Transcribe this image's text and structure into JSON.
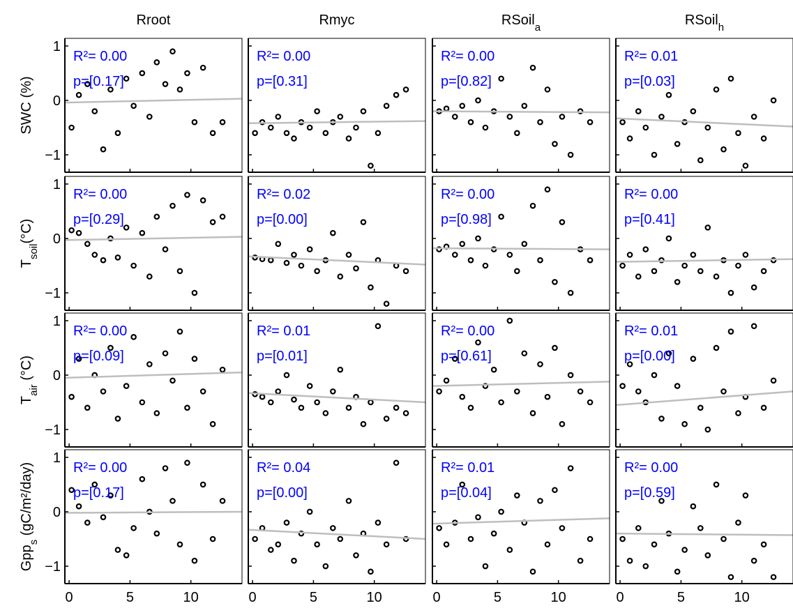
{
  "marker_color": "#000000",
  "fit_color": "#bebebe",
  "stats_color": "#0000ff",
  "chart_data": [
    {
      "type": "scatter",
      "title": {
        "main": "Rroot"
      },
      "ylabel": {
        "main": "SWC (%)"
      },
      "xlim": [
        -0.35,
        14.2
      ],
      "ylim": [
        -1.32,
        1.14
      ],
      "xticks": [
        0,
        5,
        10
      ],
      "yticks": [
        {
          "value": -1,
          "label": "−1"
        },
        0,
        1
      ],
      "x": [
        0.2,
        0.8,
        1.5,
        2.1,
        2.8,
        3.4,
        4.0,
        4.7,
        5.3,
        6.0,
        6.6,
        7.2,
        7.9,
        8.5,
        9.1,
        9.7,
        10.3,
        11.0,
        11.8,
        12.6
      ],
      "y": [
        -0.5,
        0.1,
        0.3,
        -0.2,
        -0.9,
        0.2,
        -0.6,
        0.4,
        -0.1,
        0.5,
        -0.3,
        0.7,
        0.3,
        0.9,
        0.2,
        0.5,
        -0.4,
        0.6,
        -0.6,
        -0.4
      ],
      "fit": {
        "x": [
          -0.35,
          14.2
        ],
        "y": [
          -0.04,
          0.03
        ]
      },
      "stats": [
        "R²= 0.00",
        "p=[0.17]"
      ]
    },
    {
      "type": "scatter",
      "title": {
        "main": "Rmyc"
      },
      "xlim": [
        -0.35,
        14.2
      ],
      "ylim": [
        -1.32,
        1.14
      ],
      "xticks": [
        0,
        5,
        10
      ],
      "yticks": [
        {
          "value": -1,
          "label": "−1"
        },
        0,
        1
      ],
      "x": [
        0.2,
        0.8,
        1.5,
        2.1,
        2.8,
        3.4,
        4.0,
        4.7,
        5.3,
        6.0,
        6.6,
        7.2,
        7.9,
        8.5,
        9.1,
        9.7,
        10.3,
        11.0,
        11.8,
        12.6
      ],
      "y": [
        -0.6,
        -0.4,
        -0.5,
        -0.3,
        -0.6,
        -0.7,
        -0.4,
        -0.5,
        -0.2,
        -0.6,
        -0.4,
        -0.3,
        -0.7,
        -0.5,
        -0.2,
        -1.2,
        -0.6,
        -0.1,
        0.1,
        0.2
      ],
      "fit": {
        "x": [
          -0.35,
          14.2
        ],
        "y": [
          -0.42,
          -0.38
        ]
      },
      "stats": [
        "R²= 0.00",
        "p=[0.31]"
      ]
    },
    {
      "type": "scatter",
      "title": {
        "main": "RSoil",
        "sub": "a"
      },
      "xlim": [
        -0.35,
        14.2
      ],
      "ylim": [
        -1.32,
        1.14
      ],
      "xticks": [
        0,
        5,
        10
      ],
      "yticks": [
        {
          "value": -1,
          "label": "−1"
        },
        0,
        1
      ],
      "x": [
        0.2,
        0.8,
        1.5,
        2.1,
        2.8,
        3.4,
        4.0,
        4.7,
        5.3,
        6.0,
        6.6,
        7.2,
        7.9,
        8.5,
        9.1,
        9.7,
        10.3,
        11.0,
        11.8,
        12.6
      ],
      "y": [
        -0.2,
        -0.15,
        -0.3,
        -0.1,
        -0.4,
        0.0,
        -0.5,
        -0.2,
        0.4,
        -0.3,
        -0.6,
        -0.1,
        0.6,
        -0.4,
        0.2,
        -0.8,
        -0.3,
        -1.0,
        -0.2,
        -0.4
      ],
      "fit": {
        "x": [
          -0.35,
          14.2
        ],
        "y": [
          -0.2,
          -0.22
        ]
      },
      "stats": [
        "R²= 0.00",
        "p=[0.82]"
      ]
    },
    {
      "type": "scatter",
      "title": {
        "main": "RSoil",
        "sub": "h"
      },
      "xlim": [
        -0.35,
        14.2
      ],
      "ylim": [
        -1.32,
        1.14
      ],
      "xticks": [
        0,
        5,
        10
      ],
      "yticks": [
        {
          "value": -1,
          "label": "−1"
        },
        0,
        1
      ],
      "x": [
        0.2,
        0.8,
        1.5,
        2.1,
        2.8,
        3.4,
        4.0,
        4.7,
        5.3,
        6.0,
        6.6,
        7.2,
        7.9,
        8.5,
        9.1,
        9.7,
        10.3,
        11.0,
        11.8,
        12.6
      ],
      "y": [
        -0.4,
        -0.7,
        -0.2,
        -0.5,
        -1.0,
        -0.3,
        0.1,
        -0.8,
        -0.4,
        -0.2,
        -1.1,
        -0.5,
        0.2,
        -0.9,
        0.4,
        -0.6,
        -1.2,
        -0.3,
        -0.7,
        0.0
      ],
      "fit": {
        "x": [
          -0.35,
          14.2
        ],
        "y": [
          -0.33,
          -0.48
        ]
      },
      "stats": [
        "R²= 0.01",
        "p=[0.03]"
      ]
    },
    {
      "type": "scatter",
      "ylabel": {
        "main": "T",
        "sub": "soil",
        "rest": "(°C)"
      },
      "xlim": [
        -0.35,
        14.2
      ],
      "ylim": [
        -1.32,
        1.14
      ],
      "xticks": [
        0,
        5,
        10
      ],
      "yticks": [
        {
          "value": -1,
          "label": "−1"
        },
        0,
        1
      ],
      "x": [
        0.2,
        0.8,
        1.5,
        2.1,
        2.8,
        3.4,
        4.0,
        4.7,
        5.3,
        6.0,
        6.6,
        7.2,
        7.9,
        8.5,
        9.1,
        9.7,
        10.3,
        11.0,
        11.8,
        12.6
      ],
      "y": [
        0.15,
        0.1,
        -0.1,
        -0.3,
        -0.4,
        0.0,
        -0.35,
        0.2,
        -0.5,
        0.1,
        -0.7,
        0.4,
        -0.2,
        0.6,
        -0.6,
        0.8,
        -1.0,
        0.7,
        0.3,
        0.4
      ],
      "fit": {
        "x": [
          -0.35,
          14.2
        ],
        "y": [
          -0.03,
          0.03
        ]
      },
      "stats": [
        "R²= 0.00",
        "p=[0.29]"
      ]
    },
    {
      "type": "scatter",
      "xlim": [
        -0.35,
        14.2
      ],
      "ylim": [
        -1.32,
        1.14
      ],
      "xticks": [
        0,
        5,
        10
      ],
      "yticks": [
        {
          "value": -1,
          "label": "−1"
        },
        0,
        1
      ],
      "x": [
        0.2,
        0.8,
        1.5,
        2.1,
        2.8,
        3.4,
        4.0,
        4.7,
        5.3,
        6.0,
        6.6,
        7.2,
        7.9,
        8.5,
        9.1,
        9.7,
        10.3,
        11.0,
        11.8,
        12.6
      ],
      "y": [
        -0.35,
        -0.38,
        -0.4,
        -0.1,
        -0.45,
        -0.3,
        -0.5,
        -0.2,
        -0.6,
        -0.4,
        0.1,
        -0.7,
        -0.3,
        -0.55,
        0.3,
        -0.9,
        -0.4,
        -1.2,
        -0.5,
        -0.6
      ],
      "fit": {
        "x": [
          -0.35,
          14.2
        ],
        "y": [
          -0.33,
          -0.48
        ]
      },
      "stats": [
        "R²= 0.02",
        "p=[0.00]"
      ]
    },
    {
      "type": "scatter",
      "xlim": [
        -0.35,
        14.2
      ],
      "ylim": [
        -1.32,
        1.14
      ],
      "xticks": [
        0,
        5,
        10
      ],
      "yticks": [
        {
          "value": -1,
          "label": "−1"
        },
        0,
        1
      ],
      "x": [
        0.2,
        0.8,
        1.5,
        2.1,
        2.8,
        3.4,
        4.0,
        4.7,
        5.3,
        6.0,
        6.6,
        7.2,
        7.9,
        8.5,
        9.1,
        9.7,
        10.3,
        11.0,
        11.8,
        12.6
      ],
      "y": [
        -0.2,
        -0.15,
        -0.3,
        -0.1,
        -0.4,
        0.0,
        -0.5,
        -0.2,
        0.4,
        -0.3,
        -0.6,
        -0.1,
        0.6,
        -0.4,
        0.9,
        -0.8,
        0.3,
        -1.0,
        -0.2,
        -0.4
      ],
      "fit": {
        "x": [
          -0.35,
          14.2
        ],
        "y": [
          -0.18,
          -0.2
        ]
      },
      "stats": [
        "R²= 0.00",
        "p=[0.98]"
      ]
    },
    {
      "type": "scatter",
      "xlim": [
        -0.35,
        14.2
      ],
      "ylim": [
        -1.32,
        1.14
      ],
      "xticks": [
        0,
        5,
        10
      ],
      "yticks": [
        {
          "value": -1,
          "label": "−1"
        },
        0,
        1
      ],
      "x": [
        0.2,
        0.8,
        1.5,
        2.1,
        2.8,
        3.4,
        4.0,
        4.7,
        5.3,
        6.0,
        6.6,
        7.2,
        7.9,
        8.5,
        9.1,
        9.7,
        10.3,
        11.0,
        11.8,
        12.6
      ],
      "y": [
        -0.5,
        -0.3,
        -0.7,
        -0.2,
        -0.6,
        -0.4,
        0.0,
        -0.8,
        -0.5,
        -0.3,
        -0.6,
        0.2,
        -0.7,
        -0.4,
        -1.0,
        -0.5,
        -0.3,
        -0.9,
        -0.6,
        -0.4
      ],
      "fit": {
        "x": [
          -0.35,
          14.2
        ],
        "y": [
          -0.43,
          -0.38
        ]
      },
      "stats": [
        "R²= 0.00",
        "p=[0.41]"
      ]
    },
    {
      "type": "scatter",
      "ylabel": {
        "main": "T",
        "sub": "air",
        "rest": " (°C)"
      },
      "xlim": [
        -0.35,
        14.2
      ],
      "ylim": [
        -1.32,
        1.14
      ],
      "xticks": [
        0,
        5,
        10
      ],
      "yticks": [
        {
          "value": -1,
          "label": "−1"
        },
        0,
        1
      ],
      "x": [
        0.2,
        0.8,
        1.5,
        2.1,
        2.8,
        3.4,
        4.0,
        4.7,
        5.3,
        6.0,
        6.6,
        7.2,
        7.9,
        8.5,
        9.1,
        9.7,
        10.3,
        11.0,
        11.8,
        12.6
      ],
      "y": [
        -0.4,
        0.3,
        -0.6,
        0.0,
        -0.3,
        0.5,
        -0.8,
        -0.2,
        0.7,
        -0.5,
        0.2,
        -0.7,
        0.4,
        -0.1,
        0.8,
        -0.6,
        0.3,
        -0.3,
        -0.9,
        0.1
      ],
      "fit": {
        "x": [
          -0.35,
          14.2
        ],
        "y": [
          -0.05,
          0.05
        ]
      },
      "stats": [
        "R²= 0.00",
        "p=[0.09]"
      ]
    },
    {
      "type": "scatter",
      "xlim": [
        -0.35,
        14.2
      ],
      "ylim": [
        -1.32,
        1.14
      ],
      "xticks": [
        0,
        5,
        10
      ],
      "yticks": [
        {
          "value": -1,
          "label": "−1"
        },
        0,
        1
      ],
      "x": [
        0.2,
        0.8,
        1.5,
        2.1,
        2.8,
        3.4,
        4.0,
        4.7,
        5.3,
        6.0,
        6.6,
        7.2,
        7.9,
        8.5,
        9.1,
        9.7,
        10.3,
        11.0,
        11.8,
        12.6
      ],
      "y": [
        -0.35,
        -0.4,
        -0.5,
        -0.3,
        0.0,
        -0.45,
        -0.6,
        -0.2,
        -0.5,
        -0.7,
        -0.3,
        0.1,
        -0.6,
        -0.4,
        -0.9,
        -0.5,
        0.9,
        -0.8,
        -0.6,
        -0.7
      ],
      "fit": {
        "x": [
          -0.35,
          14.2
        ],
        "y": [
          -0.33,
          -0.5
        ]
      },
      "stats": [
        "R²= 0.01",
        "p=[0.01]"
      ]
    },
    {
      "type": "scatter",
      "xlim": [
        -0.35,
        14.2
      ],
      "ylim": [
        -1.32,
        1.14
      ],
      "xticks": [
        0,
        5,
        10
      ],
      "yticks": [
        {
          "value": -1,
          "label": "−1"
        },
        0,
        1
      ],
      "x": [
        0.2,
        0.8,
        1.5,
        2.1,
        2.8,
        3.4,
        4.0,
        4.7,
        5.3,
        6.0,
        6.6,
        7.2,
        7.9,
        8.5,
        9.1,
        9.7,
        10.3,
        11.0,
        11.8,
        12.6
      ],
      "y": [
        -0.3,
        -0.1,
        0.3,
        -0.4,
        -0.6,
        0.6,
        -0.2,
        0.1,
        -0.5,
        1.0,
        -0.3,
        0.4,
        -0.7,
        0.2,
        -0.4,
        0.5,
        -0.9,
        0.0,
        -0.3,
        -0.5
      ],
      "fit": {
        "x": [
          -0.35,
          14.2
        ],
        "y": [
          -0.2,
          -0.12
        ]
      },
      "stats": [
        "R²= 0.00",
        "p=[0.61]"
      ]
    },
    {
      "type": "scatter",
      "xlim": [
        -0.35,
        14.2
      ],
      "ylim": [
        -1.32,
        1.14
      ],
      "xticks": [
        0,
        5,
        10
      ],
      "yticks": [
        {
          "value": -1,
          "label": "−1"
        },
        0,
        1
      ],
      "x": [
        0.2,
        0.8,
        1.5,
        2.1,
        2.8,
        3.4,
        4.0,
        4.7,
        5.3,
        6.0,
        6.6,
        7.2,
        7.9,
        8.5,
        9.1,
        9.7,
        10.3,
        11.0,
        11.8,
        12.6
      ],
      "y": [
        -0.2,
        0.2,
        -0.3,
        -0.5,
        0.0,
        -0.8,
        0.4,
        -0.2,
        -0.9,
        0.3,
        -0.6,
        -1.0,
        0.5,
        -0.3,
        0.8,
        -0.7,
        -0.4,
        0.9,
        -0.6,
        -0.1
      ],
      "fit": {
        "x": [
          -0.35,
          14.2
        ],
        "y": [
          -0.55,
          -0.3
        ]
      },
      "stats": [
        "R²= 0.01",
        "p=[0.00]"
      ]
    },
    {
      "type": "scatter",
      "ylabel": {
        "main": "Gpp",
        "sub": "s",
        "rest": " (gC/m²/day)"
      },
      "xlim": [
        -0.35,
        14.2
      ],
      "ylim": [
        -1.32,
        1.14
      ],
      "xticks": [
        0,
        5,
        10
      ],
      "yticks": [
        {
          "value": -1,
          "label": "−1"
        },
        0,
        1
      ],
      "x": [
        0.2,
        0.8,
        1.5,
        2.1,
        2.8,
        3.4,
        4.0,
        4.7,
        5.3,
        6.0,
        6.6,
        7.2,
        7.9,
        8.5,
        9.1,
        9.7,
        10.3,
        11.0,
        11.8,
        12.6
      ],
      "y": [
        0.4,
        0.1,
        -0.2,
        0.5,
        -0.1,
        0.3,
        -0.7,
        -0.8,
        -0.3,
        0.6,
        0.0,
        -0.4,
        0.8,
        0.2,
        -0.6,
        0.9,
        -0.9,
        0.5,
        -0.5,
        0.2
      ],
      "fit": {
        "x": [
          -0.35,
          14.2
        ],
        "y": [
          -0.02,
          0.0
        ]
      },
      "stats": [
        "R²= 0.00",
        "p=[0.17]"
      ]
    },
    {
      "type": "scatter",
      "xlim": [
        -0.35,
        14.2
      ],
      "ylim": [
        -1.32,
        1.14
      ],
      "xticks": [
        0,
        5,
        10
      ],
      "yticks": [
        {
          "value": -1,
          "label": "−1"
        },
        0,
        1
      ],
      "x": [
        0.2,
        0.8,
        1.5,
        2.1,
        2.8,
        3.4,
        4.0,
        4.7,
        5.3,
        6.0,
        6.6,
        7.2,
        7.9,
        8.5,
        9.1,
        9.7,
        10.3,
        11.0,
        11.8,
        12.6
      ],
      "y": [
        -0.5,
        -0.3,
        -0.7,
        -0.6,
        -0.2,
        -0.9,
        -0.4,
        0.0,
        -0.6,
        -1.0,
        -0.3,
        -0.5,
        0.2,
        -0.8,
        -0.4,
        -1.1,
        -0.2,
        -0.6,
        0.9,
        -0.5
      ],
      "fit": {
        "x": [
          -0.35,
          14.2
        ],
        "y": [
          -0.33,
          -0.5
        ]
      },
      "stats": [
        "R²= 0.04",
        "p=[0.00]"
      ]
    },
    {
      "type": "scatter",
      "xlim": [
        -0.35,
        14.2
      ],
      "ylim": [
        -1.32,
        1.14
      ],
      "xticks": [
        0,
        5,
        10
      ],
      "yticks": [
        {
          "value": -1,
          "label": "−1"
        },
        0,
        1
      ],
      "x": [
        0.2,
        0.8,
        1.5,
        2.1,
        2.8,
        3.4,
        4.0,
        4.7,
        5.3,
        6.0,
        6.6,
        7.2,
        7.9,
        8.5,
        9.1,
        9.7,
        10.3,
        11.0,
        11.8,
        12.6
      ],
      "y": [
        -0.3,
        -0.6,
        -0.2,
        0.5,
        -0.5,
        -0.1,
        -1.0,
        -0.4,
        0.0,
        -0.7,
        0.3,
        -0.2,
        -1.1,
        0.2,
        -0.6,
        0.4,
        -0.3,
        0.8,
        -0.9,
        -0.5
      ],
      "fit": {
        "x": [
          -0.35,
          14.2
        ],
        "y": [
          -0.22,
          -0.12
        ]
      },
      "stats": [
        "R²= 0.01",
        "p=[0.04]"
      ]
    },
    {
      "type": "scatter",
      "xlim": [
        -0.35,
        14.2
      ],
      "ylim": [
        -1.32,
        1.14
      ],
      "xticks": [
        0,
        5,
        10
      ],
      "yticks": [
        {
          "value": -1,
          "label": "−1"
        },
        0,
        1
      ],
      "x": [
        0.2,
        0.8,
        1.5,
        2.1,
        2.8,
        3.4,
        4.0,
        4.7,
        5.3,
        6.0,
        6.6,
        7.2,
        7.9,
        8.5,
        9.1,
        9.7,
        10.3,
        11.0,
        11.8,
        12.6
      ],
      "y": [
        -0.5,
        -0.9,
        -0.3,
        -1.0,
        -0.6,
        0.2,
        -0.4,
        -1.1,
        -0.7,
        0.1,
        -0.3,
        -0.8,
        0.5,
        -0.5,
        -1.2,
        -0.2,
        0.3,
        -0.9,
        -0.6,
        -1.2
      ],
      "fit": {
        "x": [
          -0.35,
          14.2
        ],
        "y": [
          -0.4,
          -0.43
        ]
      },
      "stats": [
        "R²= 0.00",
        "p=[0.59]"
      ]
    }
  ]
}
